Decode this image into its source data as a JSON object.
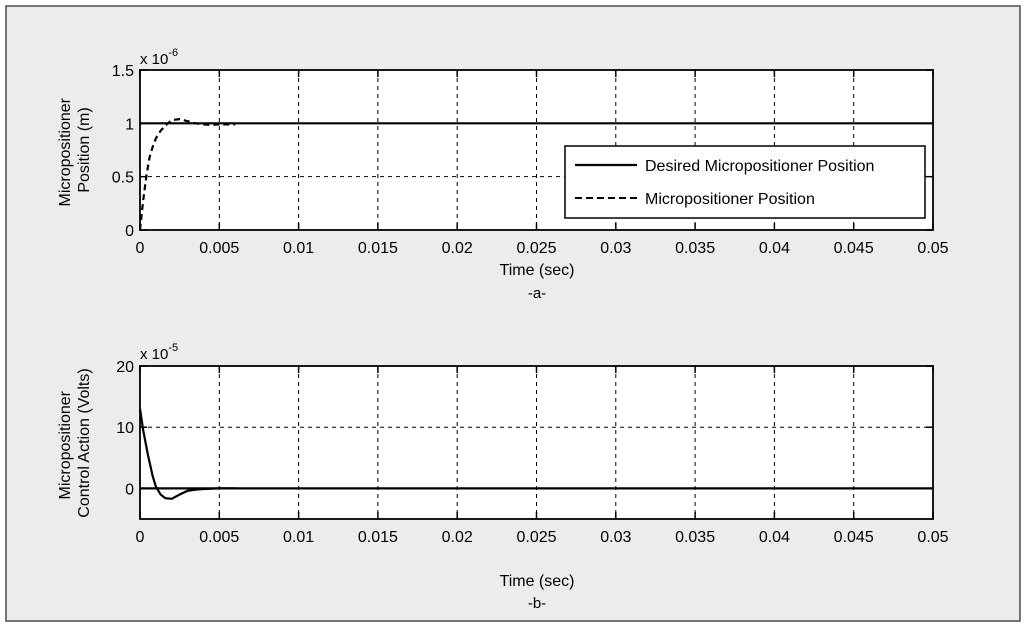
{
  "chart_data": [
    {
      "type": "line",
      "panel_caption": "-a-",
      "xlabel": "Time (sec)",
      "ylabel_lines": [
        "Micropositioner",
        "Position (m)"
      ],
      "y_exponent_label": "x 10",
      "y_exponent": "-6",
      "xlim": [
        0,
        0.05
      ],
      "ylim": [
        0,
        1.5
      ],
      "x_ticks": [
        0,
        0.005,
        0.01,
        0.015,
        0.02,
        0.025,
        0.03,
        0.035,
        0.04,
        0.045,
        0.05
      ],
      "x_tick_labels": [
        "0",
        "0.005",
        "0.01",
        "0.015",
        "0.02",
        "0.025",
        "0.03",
        "0.035",
        "0.04",
        "0.045",
        "0.05"
      ],
      "y_ticks": [
        0,
        0.5,
        1,
        1.5
      ],
      "y_tick_labels": [
        "0",
        "0.5",
        "1",
        "1.5"
      ],
      "grid": true,
      "legend_position": "right",
      "series": [
        {
          "name": "Desired Micropositioner Position",
          "style": "solid",
          "color": "#000000",
          "x": [
            0,
            0.05
          ],
          "y": [
            1,
            1
          ]
        },
        {
          "name": "Micropositioner Position",
          "style": "dashed",
          "color": "#000000",
          "x": [
            0,
            0.0002,
            0.0004,
            0.0006,
            0.0008,
            0.001,
            0.0013,
            0.0016,
            0.002,
            0.0025,
            0.003,
            0.0035,
            0.004,
            0.0045,
            0.005,
            0.0055,
            0.006
          ],
          "y": [
            0,
            0.28,
            0.5,
            0.68,
            0.78,
            0.86,
            0.93,
            0.98,
            1.03,
            1.04,
            1.02,
            1.0,
            0.99,
            0.985,
            0.99,
            0.99,
            0.99
          ]
        }
      ]
    },
    {
      "type": "line",
      "panel_caption": "-b-",
      "xlabel": "Time (sec)",
      "ylabel_lines": [
        "Micropositioner",
        "Control Action (Volts)"
      ],
      "y_exponent_label": "x 10",
      "y_exponent": "-5",
      "xlim": [
        0,
        0.05
      ],
      "ylim": [
        -5,
        20
      ],
      "x_ticks": [
        0,
        0.005,
        0.01,
        0.015,
        0.02,
        0.025,
        0.03,
        0.035,
        0.04,
        0.045,
        0.05
      ],
      "x_tick_labels": [
        "0",
        "0.005",
        "0.01",
        "0.015",
        "0.02",
        "0.025",
        "0.03",
        "0.035",
        "0.04",
        "0.045",
        "0.05"
      ],
      "y_ticks": [
        0,
        10,
        20
      ],
      "y_tick_labels": [
        "0",
        "10",
        "20"
      ],
      "grid": true,
      "series": [
        {
          "style": "solid",
          "color": "#000000",
          "x": [
            0,
            0.05
          ],
          "y": [
            0,
            0
          ]
        },
        {
          "style": "solid",
          "color": "#000000",
          "x": [
            0,
            0.0002,
            0.0005,
            0.0008,
            0.001,
            0.0013,
            0.0016,
            0.002,
            0.0025,
            0.003,
            0.0035,
            0.004,
            0.005,
            0.006
          ],
          "y": [
            13,
            9.5,
            5.5,
            2.0,
            0.3,
            -1.0,
            -1.6,
            -1.7,
            -1.0,
            -0.4,
            -0.2,
            -0.1,
            0,
            0
          ]
        }
      ]
    }
  ]
}
